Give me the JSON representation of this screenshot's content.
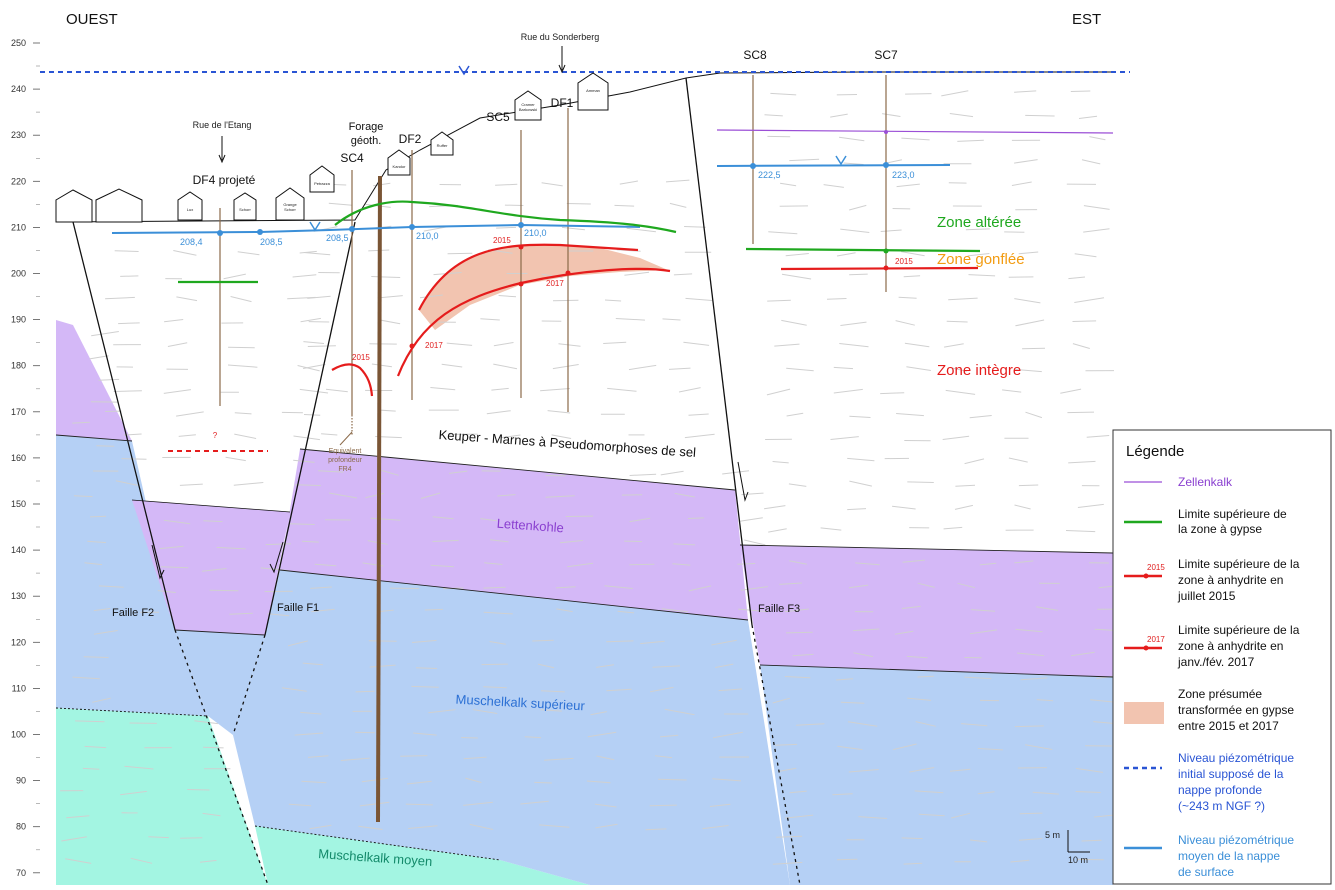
{
  "header": {
    "west": "OUEST",
    "east": "EST"
  },
  "axis": {
    "ticks": [
      "250",
      "240",
      "230",
      "220",
      "210",
      "200",
      "190",
      "180",
      "170",
      "160",
      "150",
      "140",
      "130",
      "120",
      "110",
      "100",
      "90",
      "80",
      "70"
    ]
  },
  "annotations": {
    "rue_sonderberg": "Rue du Sonderberg",
    "rue_etang": "Rue de l'Etang",
    "forage_l1": "Forage",
    "forage_l2": "géoth.",
    "equiv_l1": "Equivalent",
    "equiv_l2": "profondeur",
    "equiv_l3": "FR4",
    "question": "?",
    "scale_v": "5 m",
    "scale_h": "10 m"
  },
  "boreholes": {
    "df4": "DF4 projeté",
    "sc4": "SC4",
    "df2": "DF2",
    "sc5": "SC5",
    "df1": "DF1",
    "sc8": "SC8",
    "sc7": "SC7"
  },
  "houses": {
    "h1": "Lux",
    "h2": "Schorr",
    "h3l1": "Grange",
    "h3l2": "Schorr",
    "h4": "Petrazza",
    "h5": "Kandor",
    "h6": "Ruffer",
    "h7l1": "Cramer",
    "h7l2": "Barkowski",
    "h8": "Amman"
  },
  "water_values": {
    "v1": "208,4",
    "v2": "208,5",
    "v3": "208,5",
    "v4": "210,0",
    "v5": "210,0",
    "v6": "222,5",
    "v7": "223,0"
  },
  "years": {
    "y2015a": "2015",
    "y2015b": "2015",
    "y2015c": "2015",
    "y2017a": "2017",
    "y2017b": "2017"
  },
  "zones": {
    "alteree": "Zone altérée",
    "gonflee": "Zone gonflée",
    "integre": "Zone intègre"
  },
  "units": {
    "keuper": "Keuper - Marnes à Pseudomorphoses de sel",
    "lettenkohle": "Lettenkohle",
    "musch_sup": "Muschelkalk supérieur",
    "musch_moy": "Muschelkalk moyen"
  },
  "faults": {
    "f1": "Faille F1",
    "f2": "Faille F2",
    "f3": "Faille F3"
  },
  "legend": {
    "title": "Légende",
    "zellenkalk": "Zellenkalk",
    "gypse_l1": "Limite supérieure de",
    "gypse_l2": "la zone à gypse",
    "anh15_l1": "Limite supérieure de la",
    "anh15_l2": "zone à anhydrite en",
    "anh15_l3": "juillet 2015",
    "anh15_yr": "2015",
    "anh17_l1": "Limite supérieure de la",
    "anh17_l2": "zone à anhydrite en",
    "anh17_l3": "janv./fév. 2017",
    "anh17_yr": "2017",
    "zone_l1": "Zone présumée",
    "zone_l2": "transformée en gypse",
    "zone_l3": "entre 2015 et 2017",
    "piezo_init_l1": "Niveau piézométrique",
    "piezo_init_l2": "initial supposé de la",
    "piezo_init_l3": "nappe profonde",
    "piezo_init_l4": "(~243 m NGF ?)",
    "piezo_moy_l1": "Niveau piézométrique",
    "piezo_moy_l2": "moyen de la nappe",
    "piezo_moy_l3": "de surface"
  },
  "colors": {
    "lettenkohle": "#d4b8f7",
    "muschelkalk_sup": "#b5d0f5",
    "muschelkalk_moy": "#a3f5e2",
    "gypse": "#1fa81f",
    "anhydrite": "#e51c1c",
    "transformed": "#f2c4b0",
    "water": "#3b8fd8",
    "water_deep": "#2a55d4",
    "zellenkalk": "#9b4fd6",
    "borehole": "#8b6a4a"
  }
}
